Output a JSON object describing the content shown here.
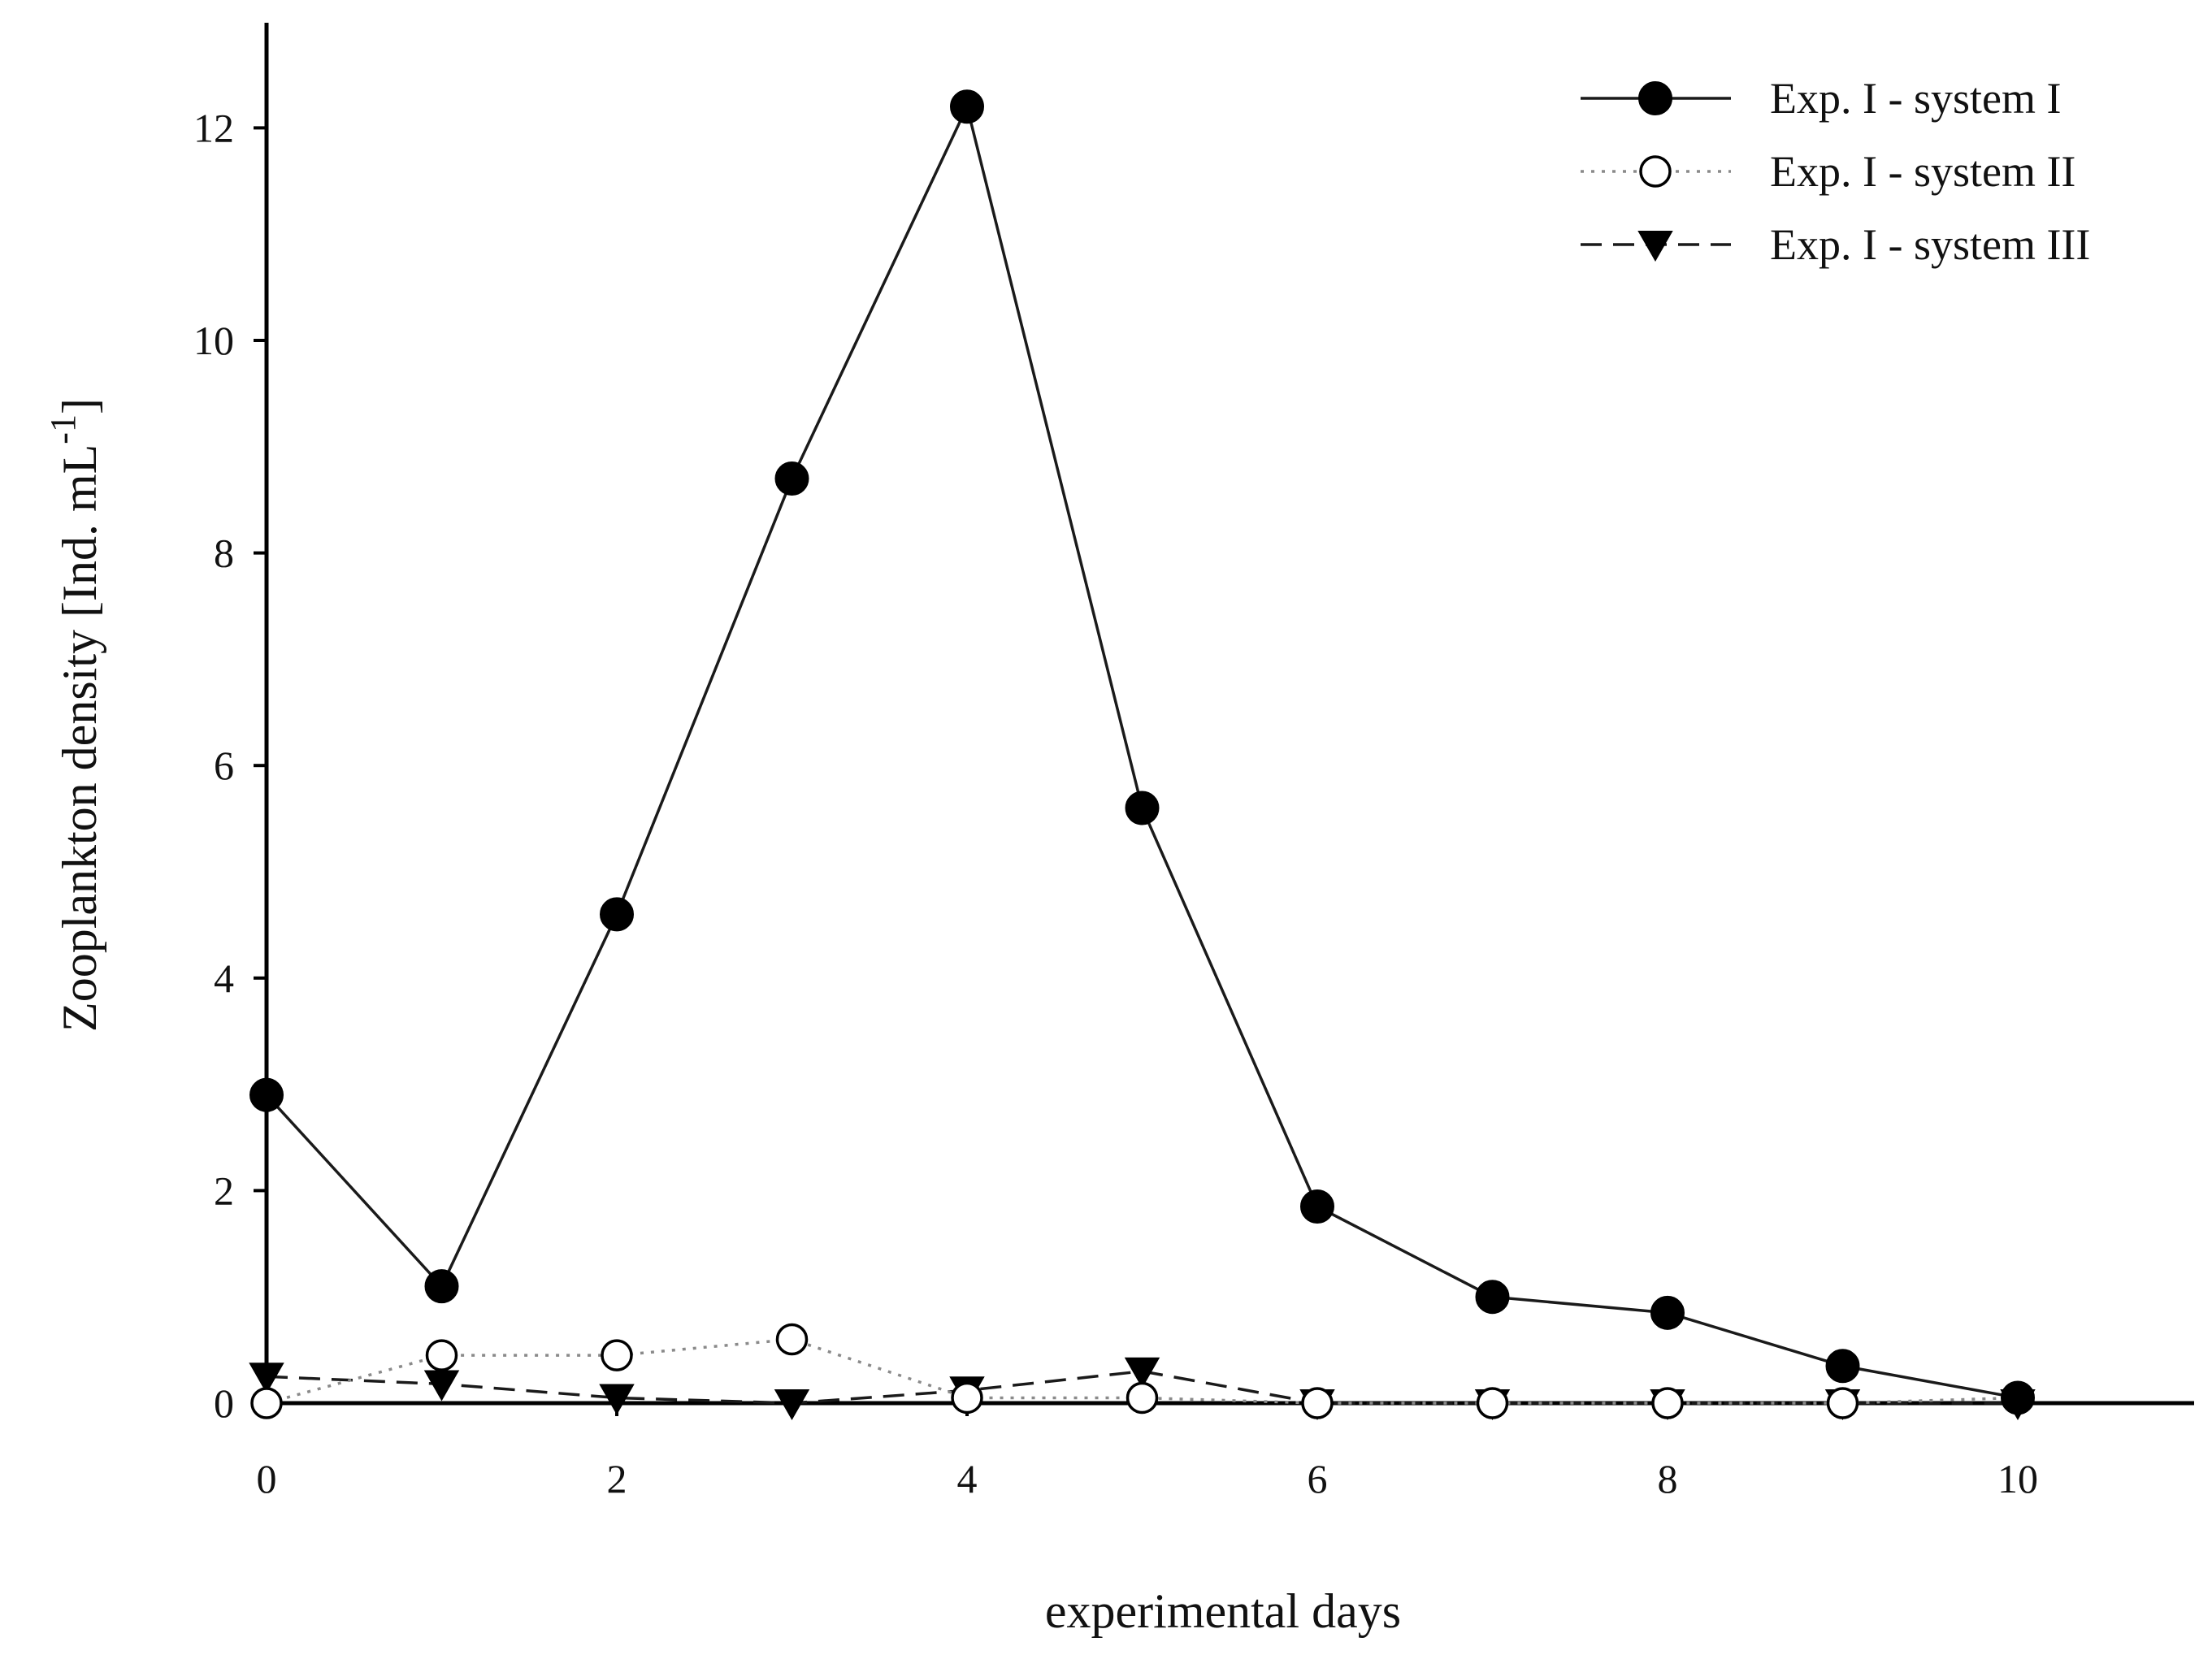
{
  "chart_data": {
    "type": "line",
    "title": "",
    "xlabel": "experimental days",
    "ylabel": "Zooplankton density [Ind. mL",
    "ylabel_superscript": "-1",
    "ylabel_close": "]",
    "xlim": [
      0,
      11
    ],
    "ylim": [
      0,
      13
    ],
    "xticks": [
      0,
      2,
      4,
      6,
      8,
      10
    ],
    "yticks": [
      0,
      2,
      4,
      6,
      8,
      10,
      12
    ],
    "grid": false,
    "legend_position": "top-right",
    "x": [
      0,
      1,
      2,
      3,
      4,
      5,
      6,
      7,
      8,
      9,
      10
    ],
    "series": [
      {
        "name": "Exp. I - system I",
        "marker": "filled-circle",
        "line": "solid",
        "values": [
          2.9,
          1.1,
          4.6,
          8.7,
          12.2,
          5.6,
          1.85,
          1.0,
          0.85,
          0.35,
          0.05
        ]
      },
      {
        "name": "Exp. I - system II",
        "marker": "open-circle",
        "line": "dotted",
        "values": [
          0.0,
          0.45,
          0.45,
          0.6,
          0.05,
          0.05,
          0.0,
          0.0,
          0.0,
          0.0,
          0.05
        ]
      },
      {
        "name": "Exp. I - system III",
        "marker": "filled-triangle-down",
        "line": "dashed",
        "values": [
          0.25,
          0.18,
          0.05,
          0.0,
          0.12,
          0.3,
          0.0,
          0.0,
          0.0,
          0.0,
          0.0
        ]
      }
    ]
  }
}
